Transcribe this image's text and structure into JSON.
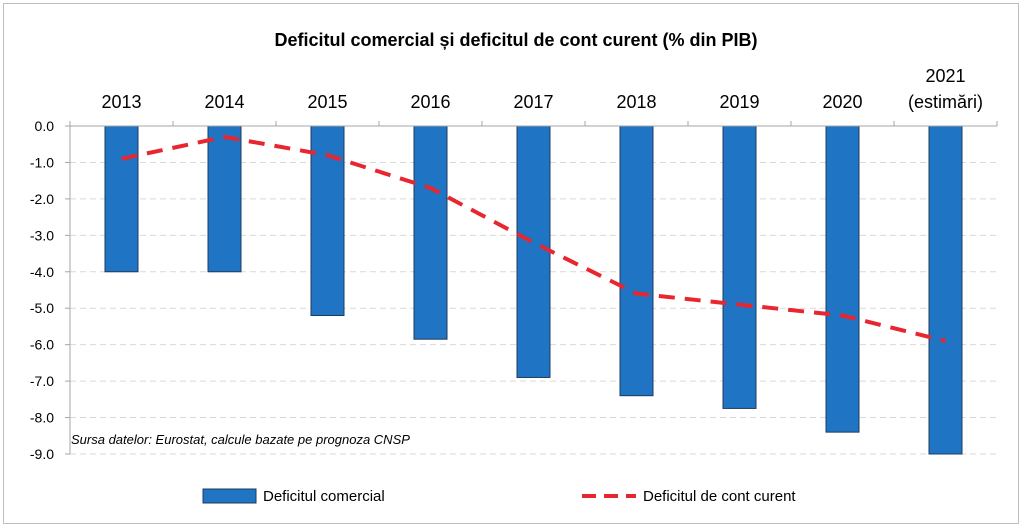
{
  "chart_data": {
    "type": "bar",
    "title": "Deficitul comercial și deficitul de cont curent (% din PIB)",
    "categories": [
      [
        "2013"
      ],
      [
        "2014"
      ],
      [
        "2015"
      ],
      [
        "2016"
      ],
      [
        "2017"
      ],
      [
        "2018"
      ],
      [
        "2019"
      ],
      [
        "2020"
      ],
      [
        "2021",
        "(estimări)"
      ]
    ],
    "series": [
      {
        "name": "Deficitul comercial",
        "type": "bar",
        "color": "#1f74c4",
        "values": [
          -4.0,
          -4.0,
          -5.2,
          -5.85,
          -6.9,
          -7.4,
          -7.75,
          -8.4,
          -9.0
        ]
      },
      {
        "name": "Deficitul de cont curent",
        "type": "line",
        "style": "dashed",
        "color": "#e8262f",
        "values": [
          -0.9,
          -0.3,
          -0.8,
          -1.7,
          -3.2,
          -4.6,
          -4.9,
          -5.2,
          -5.9
        ]
      }
    ],
    "y_ticks": [
      "0.0",
      "-1.0",
      "-2.0",
      "-3.0",
      "-4.0",
      "-5.0",
      "-6.0",
      "-7.0",
      "-8.0",
      "-9.0"
    ],
    "ylim": [
      -9,
      0
    ],
    "x_axis_position": "top",
    "grid": "horizontal dashed",
    "legend_position": "bottom",
    "annotation": "Sursa datelor: Eurostat, calcule bazate pe prognoza CNSP"
  }
}
